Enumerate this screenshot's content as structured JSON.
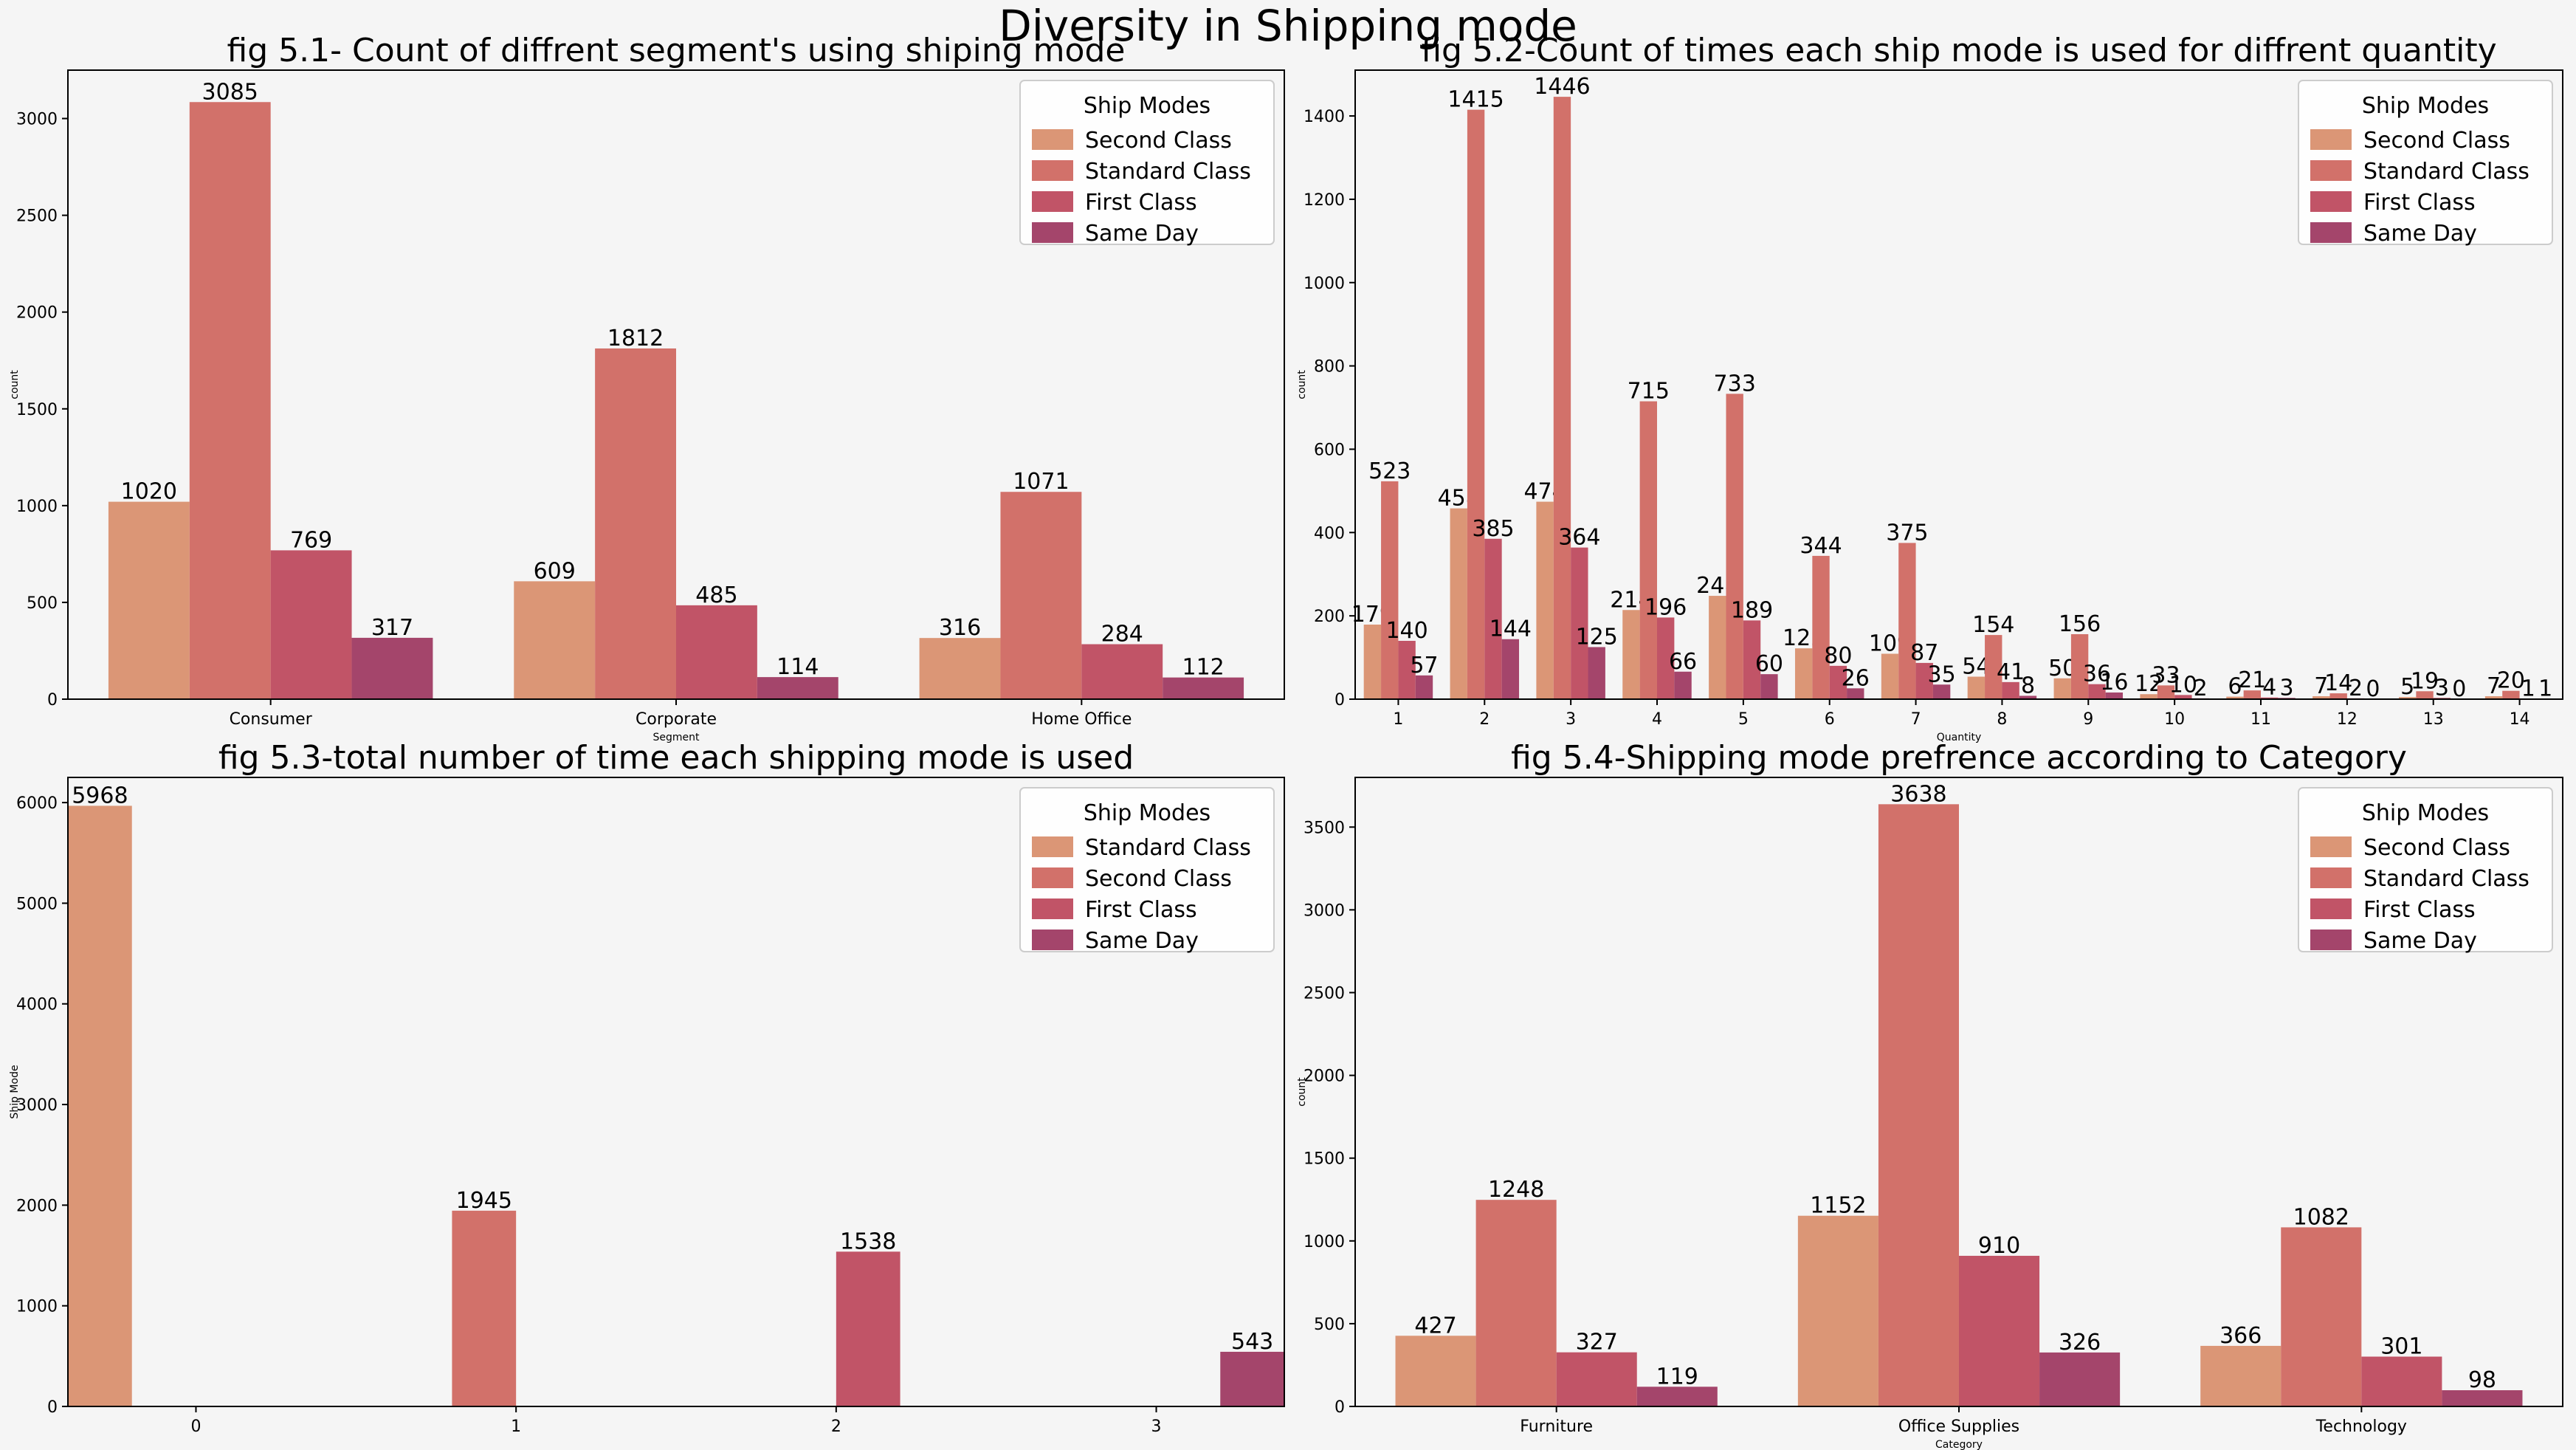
{
  "suptitle": "Diversity in Shipping mode",
  "colors": {
    "palette": [
      "#db9676",
      "#d2716a",
      "#c15467",
      "#a4456b"
    ],
    "frame": "#000000",
    "background": "#f5f5f5",
    "legend_bg": "#ffffff"
  },
  "chart_data": [
    {
      "type": "bar",
      "title": "fig 5.1- Count of diffrent segment's using shiping mode",
      "xlabel": "Segment",
      "ylabel": "count",
      "categories": [
        "Consumer",
        "Corporate",
        "Home Office"
      ],
      "series": [
        {
          "name": "Second Class",
          "values": [
            1020,
            609,
            316
          ]
        },
        {
          "name": "Standard Class",
          "values": [
            3085,
            1812,
            1071
          ]
        },
        {
          "name": "First Class",
          "values": [
            769,
            485,
            284
          ]
        },
        {
          "name": "Same Day",
          "values": [
            317,
            114,
            112
          ]
        }
      ],
      "ylim": [
        0,
        3250
      ],
      "yticks": [
        0,
        500,
        1000,
        1500,
        2000,
        2500,
        3000
      ],
      "legend": {
        "title": "Ship Modes",
        "placement": "top-right"
      },
      "grid": false
    },
    {
      "type": "bar",
      "title": "fig 5.2-Count of times each ship mode is used for diffrent quantity",
      "xlabel": "Quantity",
      "ylabel": "count",
      "categories": [
        "1",
        "2",
        "3",
        "4",
        "5",
        "6",
        "7",
        "8",
        "9",
        "10",
        "11",
        "12",
        "13",
        "14"
      ],
      "series": [
        {
          "name": "Second Class",
          "values": [
            179,
            458,
            474,
            214,
            248,
            122,
            109,
            54,
            50,
            12,
            6,
            7,
            5,
            7
          ]
        },
        {
          "name": "Standard Class",
          "values": [
            523,
            1415,
            1446,
            715,
            733,
            344,
            375,
            154,
            156,
            33,
            21,
            14,
            19,
            20
          ]
        },
        {
          "name": "First Class",
          "values": [
            140,
            385,
            364,
            196,
            189,
            80,
            87,
            41,
            36,
            10,
            4,
            2,
            3,
            1
          ]
        },
        {
          "name": "Same Day",
          "values": [
            57,
            144,
            125,
            66,
            60,
            26,
            35,
            8,
            16,
            2,
            3,
            0,
            0,
            1
          ]
        }
      ],
      "ylim": [
        0,
        1510
      ],
      "yticks": [
        0,
        200,
        400,
        600,
        800,
        1000,
        1200,
        1400
      ],
      "legend": {
        "title": "Ship Modes",
        "placement": "top-right"
      },
      "grid": false
    },
    {
      "type": "bar",
      "title": "fig 5.3-total number of time each shipping mode is used",
      "xlabel": "",
      "ylabel": "Ship Mode",
      "categories": [
        "0",
        "1",
        "2",
        "3"
      ],
      "series": [
        {
          "name": "Standard Class",
          "values": [
            5968,
            null,
            null,
            null
          ]
        },
        {
          "name": "Second Class",
          "values": [
            null,
            1945,
            null,
            null
          ]
        },
        {
          "name": "First Class",
          "values": [
            null,
            null,
            1538,
            null
          ]
        },
        {
          "name": "Same Day",
          "values": [
            null,
            null,
            null,
            543
          ]
        }
      ],
      "ylim": [
        0,
        6250
      ],
      "yticks": [
        0,
        1000,
        2000,
        3000,
        4000,
        5000,
        6000
      ],
      "legend": {
        "title": "Ship Modes",
        "placement": "top-right"
      },
      "grid": false
    },
    {
      "type": "bar",
      "title": "fig 5.4-Shipping mode prefrence according to Category",
      "xlabel": "Category",
      "ylabel": "count",
      "categories": [
        "Furniture",
        "Office Supplies",
        "Technology"
      ],
      "series": [
        {
          "name": "Second Class",
          "values": [
            427,
            1152,
            366
          ]
        },
        {
          "name": "Standard Class",
          "values": [
            1248,
            3638,
            1082
          ]
        },
        {
          "name": "First Class",
          "values": [
            327,
            910,
            301
          ]
        },
        {
          "name": "Same Day",
          "values": [
            119,
            326,
            98
          ]
        }
      ],
      "ylim": [
        0,
        3800
      ],
      "yticks": [
        0,
        500,
        1000,
        1500,
        2000,
        2500,
        3000,
        3500
      ],
      "legend": {
        "title": "Ship Modes",
        "placement": "top-right"
      },
      "grid": false
    }
  ]
}
